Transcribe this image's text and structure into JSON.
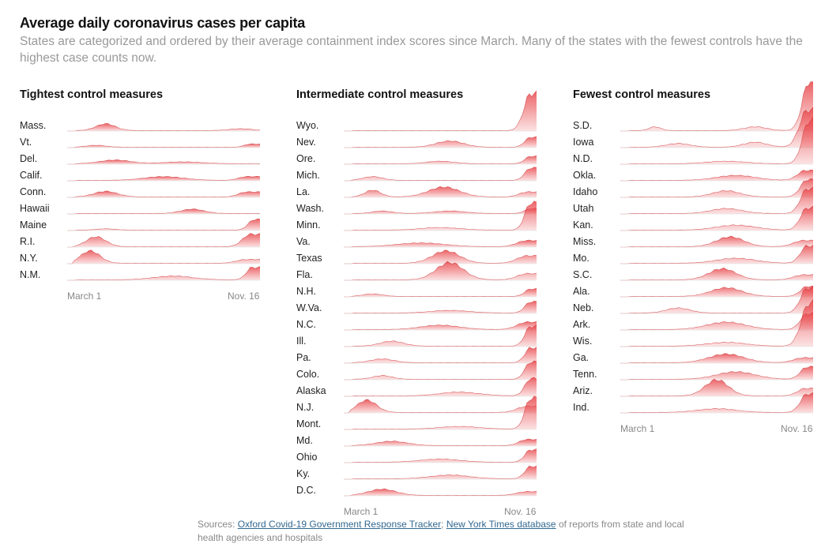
{
  "title": "Average daily coronavirus cases per capita",
  "subtitle": "States are categorized and ordered by their average containment index scores since March. Many of the states with the fewest controls have the highest case counts now.",
  "colors": {
    "fill": "#e8474b",
    "stroke": "#c9262b",
    "baseline": "#dddddd"
  },
  "axis": {
    "start": "March 1",
    "end": "Nov. 16"
  },
  "sources": {
    "prefix": "Sources:",
    "link1": "Oxford Covid-19 Government Response Tracker",
    "sep": ";",
    "link2": "New York Times database",
    "suffix": "of reports from state and local health agencies and hospitals"
  },
  "chart_data": {
    "type": "area",
    "x_range": [
      "March 1",
      "Nov. 16"
    ],
    "groups": [
      {
        "title": "Tightest control measures",
        "states": [
          "Mass.",
          "Vt.",
          "Del.",
          "Calif.",
          "Conn.",
          "Hawaii",
          "Maine",
          "R.I.",
          "N.Y.",
          "N.M."
        ]
      },
      {
        "title": "Intermediate control measures",
        "states": [
          "Wyo.",
          "Nev.",
          "Ore.",
          "Mich.",
          "La.",
          "Wash.",
          "Minn.",
          "Va.",
          "Texas",
          "Fla.",
          "N.H.",
          "W.Va.",
          "N.C.",
          "Ill.",
          "Pa.",
          "Colo.",
          "Alaska",
          "N.J.",
          "Mont.",
          "Md.",
          "Ohio",
          "Ky.",
          "D.C."
        ]
      },
      {
        "title": "Fewest control measures",
        "states": [
          "S.D.",
          "Iowa",
          "N.D.",
          "Okla.",
          "Idaho",
          "Utah",
          "Kan.",
          "Miss.",
          "Mo.",
          "S.C.",
          "Ala.",
          "Neb.",
          "Ark.",
          "Wis.",
          "Ga.",
          "Tenn.",
          "Ariz.",
          "Ind."
        ]
      }
    ]
  }
}
